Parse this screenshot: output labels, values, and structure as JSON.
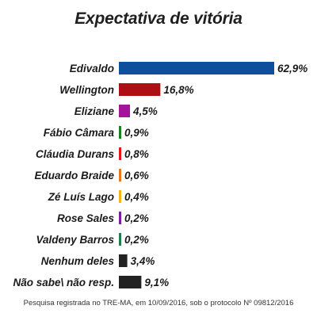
{
  "chart_data": {
    "type": "bar",
    "orientation": "horizontal",
    "title": "Expectativa de vitória",
    "categories": [
      "Edivaldo",
      "Wellington",
      "Eliziane",
      "Fábio Câmara",
      "Cláudia Durans",
      "Eduardo Braide",
      "Zé Luís Lago",
      "Rose Sales",
      "Valdeny Barros",
      "Nenhum deles",
      "Não sabe\\ não resp."
    ],
    "values": [
      62.9,
      16.8,
      4.5,
      0.9,
      0.8,
      0.6,
      0.4,
      0.2,
      0.2,
      3.4,
      9.1
    ],
    "value_labels": [
      "62,9%",
      "16,8%",
      "4,5%",
      "0,9%",
      "0,8%",
      "0,6%",
      "0,4%",
      "0,2%",
      "0,2%",
      "3,4%",
      "9,1%"
    ],
    "colors": [
      "#0d4f9c",
      "#b00e15",
      "#a3149b",
      "#1f7d1f",
      "#e8141c",
      "#e8781e",
      "#f0b71a",
      "#7a1fa3",
      "#1f7d4a",
      "#222222",
      "#222222"
    ],
    "xlim": [
      0,
      62.9
    ],
    "grid": false,
    "legend": "none"
  },
  "footnote": "Pesquisa registrada no TRE-MA, em 10/09/2016, sob o protocolo Nº 09812/2016"
}
